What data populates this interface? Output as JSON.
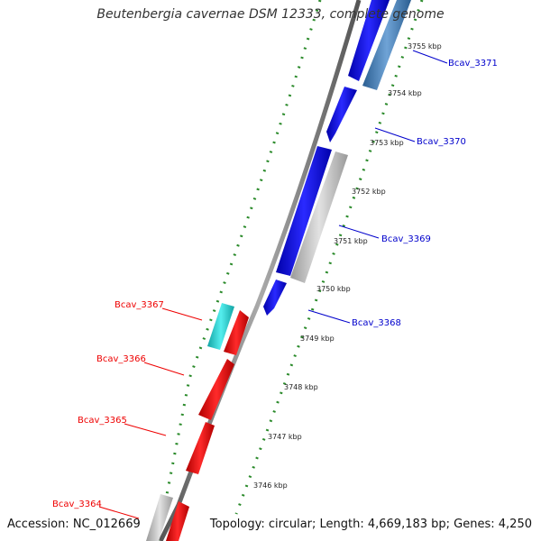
{
  "title": "Beutenbergia cavernae DSM 12333, complete genome",
  "accession": "Accession: NC_012669",
  "summary": "Topology: circular; Length: 4,669,183 bp; Genes: 4,250",
  "colors": {
    "forward_gene": "#0000ee",
    "forward_gene_alt": "#3d7ab8",
    "reverse_gene": "#ee0000",
    "reverse_gene_alt": "#22cccc",
    "pseudo_gene": "#bbbbbb",
    "backbone": "#808080",
    "tick": "#228b22",
    "label_forward": "#0000cc",
    "label_reverse": "#ee0000"
  },
  "scale_ticks": [
    "3755 kbp",
    "3754 kbp",
    "3753 kbp",
    "3752 kbp",
    "3751 kbp",
    "3750 kbp",
    "3749 kbp",
    "3748 kbp",
    "3747 kbp",
    "3746 kbp"
  ],
  "forward_labels": [
    "Bcav_3371",
    "Bcav_3370",
    "Bcav_3369",
    "Bcav_3368"
  ],
  "reverse_labels": [
    "Bcav_3367",
    "Bcav_3366",
    "Bcav_3365",
    "Bcav_3364"
  ]
}
